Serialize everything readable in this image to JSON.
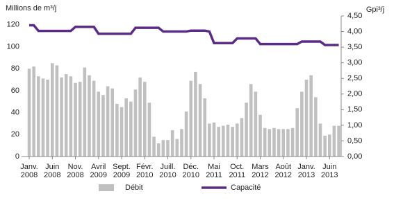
{
  "chart_data": {
    "type": "bar-line",
    "y_label": "Millions de m³/j",
    "y2_label": "Gpi³/j",
    "categories": [
      "Janv. 2008",
      null,
      null,
      null,
      null,
      "Juin 2008",
      null,
      null,
      null,
      null,
      "Nov. 2008",
      null,
      null,
      null,
      null,
      "Avril 2009",
      null,
      null,
      null,
      null,
      "Sept. 2009",
      null,
      null,
      null,
      null,
      "Févr. 2010",
      null,
      null,
      null,
      null,
      "Juill. 2010",
      null,
      null,
      null,
      null,
      "Déc. 2010",
      null,
      null,
      null,
      null,
      "Mai 2011",
      null,
      null,
      null,
      null,
      "Oct. 2011",
      null,
      null,
      null,
      null,
      "Mars 2012",
      null,
      null,
      null,
      null,
      "Août 2012",
      null,
      null,
      null,
      null,
      "Janv. 2013",
      null,
      null,
      null,
      null,
      "Juin 2013",
      null,
      null
    ],
    "series": [
      {
        "name": "Débit",
        "type": "bar",
        "color": "#c0c0c0",
        "values": [
          80,
          82,
          73,
          71,
          70,
          85,
          83,
          72,
          75,
          73,
          67,
          68,
          81,
          74,
          69,
          59,
          56,
          64,
          62,
          48,
          45,
          53,
          50,
          61,
          72,
          68,
          49,
          18,
          12,
          15,
          15,
          24,
          16,
          25,
          41,
          69,
          77,
          66,
          53,
          30,
          31,
          27,
          28,
          29,
          27,
          30,
          35,
          49,
          66,
          59,
          38,
          26,
          25,
          26,
          25,
          25,
          25,
          26,
          44,
          59,
          70,
          74,
          54,
          30,
          19,
          20,
          28,
          28
        ]
      },
      {
        "name": "Capacité",
        "type": "line",
        "axis": "y2",
        "color": "#5b2c86",
        "values": [
          4.2,
          4.2,
          4.02,
          4.02,
          4.02,
          4.02,
          4.02,
          4.02,
          4.02,
          4.02,
          4.15,
          4.15,
          4.15,
          4.15,
          4.15,
          3.93,
          3.93,
          3.93,
          3.93,
          3.93,
          3.93,
          3.93,
          3.93,
          4.12,
          4.12,
          4.12,
          4.12,
          4.12,
          4.12,
          4.0,
          4.0,
          4.0,
          4.0,
          4.0,
          4.0,
          4.03,
          4.03,
          4.03,
          4.03,
          4.0,
          3.63,
          3.63,
          3.63,
          3.63,
          3.63,
          3.78,
          3.78,
          3.78,
          3.78,
          3.78,
          3.6,
          3.6,
          3.6,
          3.6,
          3.6,
          3.6,
          3.6,
          3.6,
          3.6,
          3.68,
          3.68,
          3.68,
          3.68,
          3.68,
          3.57,
          3.57,
          3.57,
          3.57
        ]
      }
    ],
    "ylim": [
      0,
      128
    ],
    "yticks": [
      0,
      20,
      40,
      60,
      80,
      100,
      120
    ],
    "y2lim": [
      0,
      4.5
    ],
    "y2ticks": [
      {
        "value": 0,
        "label": "0,00"
      },
      {
        "value": 0.5,
        "label": "0,50"
      },
      {
        "value": 1,
        "label": "1,00"
      },
      {
        "value": 1.5,
        "label": "1,50"
      },
      {
        "value": 2,
        "label": "2,00"
      },
      {
        "value": 2.5,
        "label": "2,50"
      },
      {
        "value": 3,
        "label": "3,00"
      },
      {
        "value": 3.5,
        "label": "3,50"
      },
      {
        "value": 4,
        "label": "4,00"
      },
      {
        "value": 4.5,
        "label": "4,50"
      }
    ],
    "grid": false,
    "legend": "bottom"
  }
}
